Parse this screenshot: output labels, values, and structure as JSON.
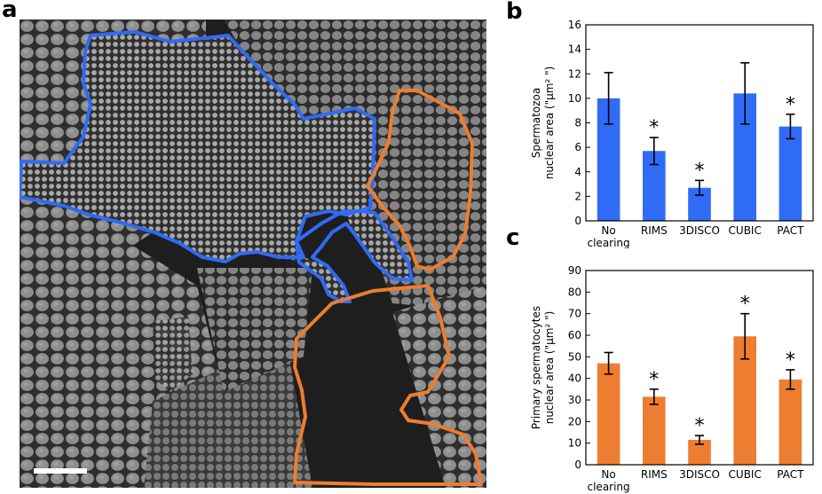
{
  "panels": {
    "a": {
      "letter": "a",
      "image": {
        "colors": {
          "background": "#1e1e1e",
          "cells": "#8c8c8c",
          "spermatozoa_outline": "#2f6bf5",
          "spermatocytes_outline": "#ed7d31",
          "scale_bar": "#ffffff"
        }
      }
    },
    "b": {
      "letter": "b"
    },
    "c": {
      "letter": "c"
    }
  },
  "chart_data": [
    {
      "type": "bar",
      "panel": "b",
      "categories": [
        "No clearing",
        "RIMS",
        "3DISCO",
        "CUBIC",
        "PACT"
      ],
      "category_lines": [
        [
          "No",
          "clearing"
        ],
        [
          "RIMS"
        ],
        [
          "3DISCO"
        ],
        [
          "CUBIC"
        ],
        [
          "PACT"
        ]
      ],
      "values": [
        10.0,
        5.7,
        2.7,
        10.4,
        7.7
      ],
      "errors": [
        2.1,
        1.1,
        0.6,
        2.5,
        1.0
      ],
      "significant": [
        false,
        true,
        true,
        false,
        true
      ],
      "significance_marker": "*",
      "ylabel_lines": [
        "Spermatozoa",
        "nuclear area (\"µm² \")"
      ],
      "ylim": [
        0,
        16
      ],
      "yticks": [
        0,
        2,
        4,
        6,
        8,
        10,
        12,
        14,
        16
      ],
      "bar_color": "#2f6bf5",
      "grid": false
    },
    {
      "type": "bar",
      "panel": "c",
      "categories": [
        "No clearing",
        "RIMS",
        "3DISCO",
        "CUBIC",
        "PACT"
      ],
      "category_lines": [
        [
          "No",
          "clearing"
        ],
        [
          "RIMS"
        ],
        [
          "3DISCO"
        ],
        [
          "CUBIC"
        ],
        [
          "PACT"
        ]
      ],
      "values": [
        47,
        31.5,
        11.5,
        59.5,
        39.5
      ],
      "errors": [
        5,
        3.5,
        2,
        10.5,
        4.5
      ],
      "significant": [
        false,
        true,
        true,
        true,
        true
      ],
      "significance_marker": "*",
      "ylabel_lines": [
        "Primary spermatocytes",
        "nuclear area (\"µm² \")"
      ],
      "ylim": [
        0,
        90
      ],
      "yticks": [
        0,
        10,
        20,
        30,
        40,
        50,
        60,
        70,
        80,
        90
      ],
      "bar_color": "#ed7d31",
      "grid": false
    }
  ]
}
